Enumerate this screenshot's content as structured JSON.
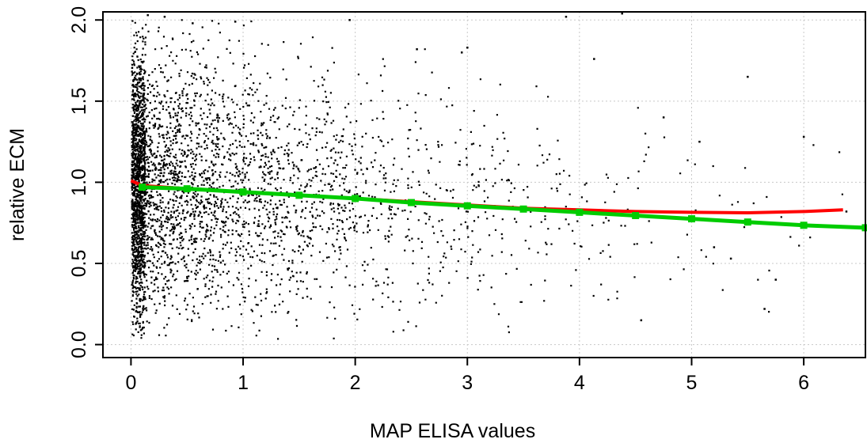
{
  "chart_data": {
    "type": "scatter",
    "title": "",
    "xlabel": "MAP ELISA values",
    "ylabel": "relative ECM",
    "xlim": [
      -0.25,
      6.55
    ],
    "ylim": [
      -0.08,
      2.05
    ],
    "x_ticks": [
      0,
      1,
      2,
      3,
      4,
      5,
      6
    ],
    "x_tick_labels": [
      "0",
      "1",
      "2",
      "3",
      "4",
      "5",
      "6"
    ],
    "y_ticks": [
      0.0,
      0.5,
      1.0,
      1.5,
      2.0
    ],
    "y_tick_labels": [
      "0.0",
      "0.5",
      "1.0",
      "1.5",
      "2.0"
    ],
    "grid": true,
    "point_color": "#000000",
    "outliers": [
      {
        "x": 0.15,
        "y": 2.03
      },
      {
        "x": 0.3,
        "y": 2.02
      },
      {
        "x": 0.55,
        "y": 1.98
      },
      {
        "x": 0.93,
        "y": 1.99
      },
      {
        "x": 1.95,
        "y": 2.0
      },
      {
        "x": 2.55,
        "y": 1.82
      },
      {
        "x": 2.95,
        "y": 1.8
      },
      {
        "x": 3.0,
        "y": 1.83
      },
      {
        "x": 3.88,
        "y": 2.02
      },
      {
        "x": 4.38,
        "y": 2.04
      },
      {
        "x": 4.13,
        "y": 1.76
      },
      {
        "x": 4.75,
        "y": 1.4
      },
      {
        "x": 5.07,
        "y": 1.25
      },
      {
        "x": 5.5,
        "y": 1.65
      },
      {
        "x": 6.0,
        "y": 1.28
      },
      {
        "x": 5.75,
        "y": 0.4
      },
      {
        "x": 5.65,
        "y": 0.22
      },
      {
        "x": 6.38,
        "y": 0.82
      },
      {
        "x": 4.55,
        "y": 0.15
      },
      {
        "x": 5.2,
        "y": 0.6
      },
      {
        "x": 5.35,
        "y": 0.53
      }
    ],
    "series": [
      {
        "type": "line",
        "color": "#ff0000",
        "x": [
          0.0,
          0.1,
          0.5,
          1.0,
          1.5,
          2.0,
          2.5,
          3.0,
          3.5,
          4.0,
          4.5,
          5.0,
          5.5,
          6.0,
          6.35
        ],
        "y": [
          1.01,
          0.98,
          0.96,
          0.94,
          0.92,
          0.9,
          0.88,
          0.86,
          0.84,
          0.83,
          0.82,
          0.815,
          0.812,
          0.82,
          0.83
        ]
      },
      {
        "type": "line",
        "color": "#00cc00",
        "marker": "square",
        "x": [
          0.1,
          0.5,
          1.0,
          1.5,
          2.0,
          2.5,
          3.0,
          3.5,
          4.0,
          4.5,
          5.0,
          5.5,
          6.0,
          6.55
        ],
        "y": [
          0.97,
          0.96,
          0.94,
          0.92,
          0.9,
          0.875,
          0.855,
          0.835,
          0.815,
          0.795,
          0.775,
          0.755,
          0.735,
          0.72
        ]
      }
    ]
  }
}
